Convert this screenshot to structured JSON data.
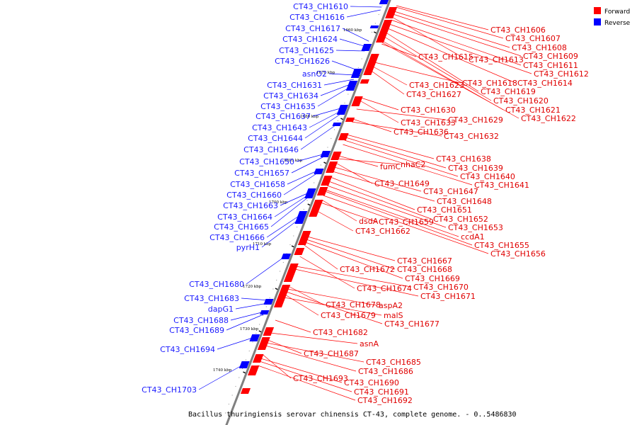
{
  "caption": "Bacillus thuringiensis serovar chinensis CT-43, complete genome. - 0..5486830",
  "colors": {
    "forward": "#ff0000",
    "reverse": "#0000ff",
    "backbone": "#808080"
  },
  "legend": [
    {
      "label": "Forward",
      "color": "#ff0000"
    },
    {
      "label": "Reverse",
      "color": "#0000ff"
    }
  ],
  "ticks": [
    "1660 kbp",
    "1670 kbp",
    "1680 kbp",
    "1690 kbp",
    "1700 kbp",
    "1710 kbp",
    "1720 kbp",
    "1730 kbp",
    "1740 kbp"
  ],
  "reverse_labels": [
    "CT43_CH1610",
    "CT43_CH1616",
    "CT43_CH1617",
    "CT43_CH1624",
    "CT43_CH1625",
    "CT43_CH1626",
    "asnO2",
    "CT43_CH1631",
    "CT43_CH1634",
    "CT43_CH1635",
    "CT43_CH1637",
    "CT43_CH1643",
    "CT43_CH1644",
    "CT43_CH1646",
    "CT43_CH1650",
    "CT43_CH1657",
    "CT43_CH1658",
    "CT43_CH1660",
    "CT43_CH1663",
    "CT43_CH1664",
    "CT43_CH1665",
    "CT43_CH1666",
    "pyrH1",
    "CT43_CH1680",
    "CT43_CH1683",
    "dapG1",
    "CT43_CH1688",
    "CT43_CH1689",
    "CT43_CH1694",
    "CT43_CH1703"
  ],
  "forward_labels": [
    "CT43_CH1606",
    "CT43_CH1607",
    "CT43_CH1608",
    "CT43_CH1609",
    "CT43_CH1615",
    "CT43_CH1613",
    "CT43_CH1611",
    "CT43_CH1612",
    "CT43_CH1618",
    "CT43_CH1614",
    "CT43_CH1623",
    "CT43_CH1619",
    "CT43_CH1627",
    "CT43_CH1620",
    "CT43_CH1621",
    "CT43_CH1630",
    "CT43_CH1622",
    "CT43_CH1633",
    "CT43_CH1629",
    "CT43_CH1636",
    "CT43_CH1632",
    "CT43_CH1638",
    "fumC",
    "nhaC2",
    "CT43_CH1639",
    "CT43_CH1640",
    "CT43_CH1641",
    "CT43_CH1649",
    "CT43_CH1647",
    "CT43_CH1648",
    "CT43_CH1651",
    "dsdA",
    "CT43_CH1659",
    "CT43_CH1652",
    "CT43_CH1653",
    "CT43_CH1662",
    "ccdA1",
    "CT43_CH1655",
    "CT43_CH1656",
    "CT43_CH1667",
    "CT43_CH1672",
    "CT43_CH1668",
    "CT43_CH1669",
    "CT43_CH1674",
    "CT43_CH1670",
    "CT43_CH1671",
    "CT43_CH1678",
    "aspA2",
    "CT43_CH1679",
    "malS",
    "CT43_CH1677",
    "CT43_CH1682",
    "asnA",
    "CT43_CH1687",
    "CT43_CH1685",
    "CT43_CH1686",
    "CT43_CH1693",
    "CT43_CH1690",
    "CT43_CH1691",
    "CT43_CH1692"
  ]
}
